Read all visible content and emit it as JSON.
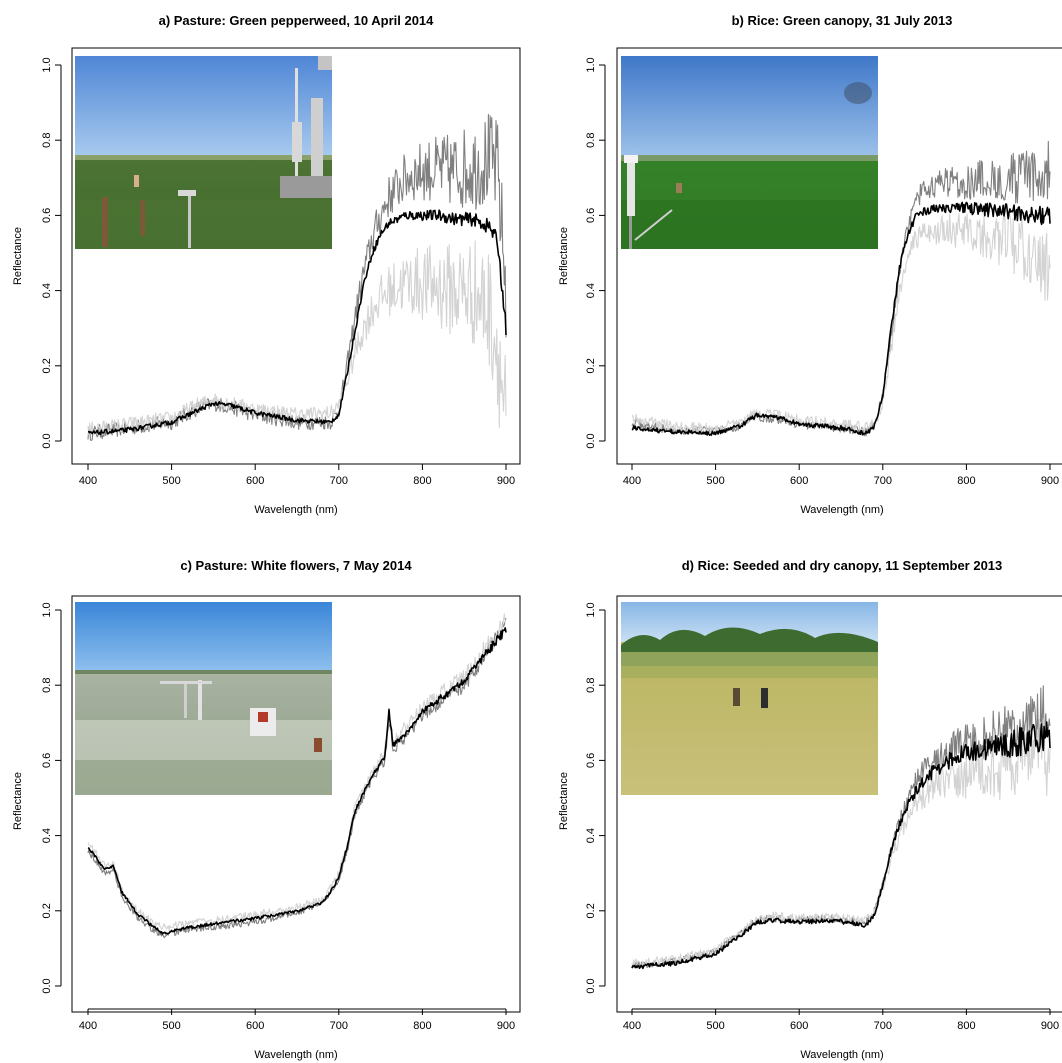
{
  "chart_data": [
    {
      "type": "line",
      "title": "a) Pasture: Green pepperweed, 10 April 2014",
      "xlabel": "Wavelength (nm)",
      "ylabel": "Reflectance",
      "xlim": [
        400,
        900
      ],
      "ylim": [
        0.0,
        1.0
      ],
      "xticks": [
        "400",
        "500",
        "600",
        "700",
        "800",
        "900"
      ],
      "yticks": [
        "0.0",
        "0.2",
        "0.4",
        "0.6",
        "0.8",
        "1.0"
      ],
      "grid": false,
      "inset_photo": "pasture-pepperweed-photo",
      "series": [
        {
          "color": "#808080",
          "noise": 0.02,
          "noise_ramp": 0.12,
          "x": [
            400,
            450,
            500,
            530,
            550,
            570,
            600,
            650,
            690,
            700,
            710,
            720,
            730,
            740,
            750,
            760,
            780,
            800,
            820,
            840,
            860,
            880,
            890,
            900
          ],
          "y": [
            0.02,
            0.035,
            0.05,
            0.085,
            0.1,
            0.09,
            0.07,
            0.05,
            0.05,
            0.08,
            0.2,
            0.34,
            0.45,
            0.54,
            0.6,
            0.65,
            0.7,
            0.72,
            0.72,
            0.72,
            0.73,
            0.75,
            0.72,
            0.4
          ]
        },
        {
          "color": "#d3d3d3",
          "noise": 0.02,
          "noise_ramp": 0.16,
          "x": [
            400,
            450,
            500,
            530,
            550,
            570,
            600,
            650,
            690,
            700,
            710,
            720,
            730,
            740,
            750,
            760,
            780,
            800,
            820,
            840,
            860,
            880,
            890,
            900
          ],
          "y": [
            0.03,
            0.045,
            0.06,
            0.095,
            0.11,
            0.1,
            0.085,
            0.07,
            0.075,
            0.095,
            0.16,
            0.24,
            0.3,
            0.35,
            0.38,
            0.4,
            0.42,
            0.42,
            0.41,
            0.4,
            0.4,
            0.35,
            0.25,
            0.05
          ]
        },
        {
          "color": "#000000",
          "noise": 0.006,
          "noise_ramp": 0.015,
          "x": [
            400,
            450,
            500,
            530,
            550,
            570,
            600,
            650,
            690,
            700,
            710,
            720,
            730,
            740,
            750,
            760,
            780,
            800,
            820,
            840,
            860,
            880,
            890,
            900
          ],
          "y": [
            0.02,
            0.03,
            0.05,
            0.08,
            0.1,
            0.095,
            0.075,
            0.055,
            0.05,
            0.07,
            0.18,
            0.3,
            0.42,
            0.5,
            0.55,
            0.58,
            0.6,
            0.6,
            0.6,
            0.59,
            0.59,
            0.57,
            0.53,
            0.3
          ]
        }
      ]
    },
    {
      "type": "line",
      "title": "b) Rice: Green canopy, 31 July 2013",
      "xlabel": "Wavelength (nm)",
      "ylabel": "Reflectance",
      "xlim": [
        400,
        900
      ],
      "ylim": [
        0.0,
        1.0
      ],
      "xticks": [
        "400",
        "500",
        "600",
        "700",
        "800",
        "900"
      ],
      "yticks": [
        "0.0",
        "0.2",
        "0.4",
        "0.6",
        "0.8",
        "1.0"
      ],
      "grid": false,
      "inset_photo": "rice-green-canopy-photo",
      "series": [
        {
          "color": "#808080",
          "noise": 0.012,
          "noise_ramp": 0.07,
          "x": [
            400,
            420,
            450,
            500,
            530,
            550,
            570,
            600,
            650,
            680,
            690,
            700,
            710,
            720,
            730,
            740,
            750,
            760,
            780,
            800,
            850,
            880,
            900
          ],
          "y": [
            0.05,
            0.04,
            0.03,
            0.025,
            0.04,
            0.065,
            0.06,
            0.045,
            0.035,
            0.025,
            0.05,
            0.12,
            0.28,
            0.45,
            0.57,
            0.64,
            0.67,
            0.68,
            0.69,
            0.69,
            0.7,
            0.7,
            0.72
          ]
        },
        {
          "color": "#d3d3d3",
          "noise": 0.015,
          "noise_ramp": 0.08,
          "x": [
            400,
            420,
            450,
            500,
            530,
            550,
            570,
            600,
            650,
            680,
            690,
            700,
            710,
            720,
            730,
            740,
            750,
            760,
            780,
            800,
            850,
            880,
            900
          ],
          "y": [
            0.06,
            0.05,
            0.04,
            0.03,
            0.05,
            0.075,
            0.07,
            0.055,
            0.045,
            0.035,
            0.045,
            0.1,
            0.24,
            0.4,
            0.5,
            0.54,
            0.55,
            0.56,
            0.56,
            0.55,
            0.53,
            0.5,
            0.45
          ]
        },
        {
          "color": "#000000",
          "noise": 0.006,
          "noise_ramp": 0.02,
          "x": [
            400,
            420,
            450,
            500,
            530,
            550,
            570,
            600,
            650,
            680,
            690,
            700,
            710,
            720,
            730,
            740,
            750,
            760,
            780,
            800,
            850,
            880,
            900
          ],
          "y": [
            0.035,
            0.03,
            0.025,
            0.02,
            0.04,
            0.07,
            0.065,
            0.045,
            0.035,
            0.02,
            0.04,
            0.12,
            0.3,
            0.46,
            0.55,
            0.6,
            0.61,
            0.62,
            0.62,
            0.62,
            0.61,
            0.6,
            0.6
          ]
        }
      ]
    },
    {
      "type": "line",
      "title": "c) Pasture: White flowers, 7 May 2014",
      "xlabel": "Wavelength (nm)",
      "ylabel": "Reflectance",
      "xlim": [
        400,
        900
      ],
      "ylim": [
        0.0,
        1.0
      ],
      "xticks": [
        "400",
        "500",
        "600",
        "700",
        "800",
        "900"
      ],
      "yticks": [
        "0.0",
        "0.2",
        "0.4",
        "0.6",
        "0.8",
        "1.0"
      ],
      "grid": false,
      "inset_photo": "pasture-white-flowers-photo",
      "series": [
        {
          "color": "#808080",
          "noise": 0.008,
          "noise_ramp": 0.015,
          "x": [
            400,
            410,
            420,
            430,
            440,
            460,
            480,
            490,
            500,
            520,
            550,
            600,
            650,
            680,
            690,
            700,
            710,
            720,
            740,
            755,
            760,
            765,
            780,
            800,
            850,
            900
          ],
          "y": [
            0.36,
            0.33,
            0.3,
            0.31,
            0.24,
            0.18,
            0.145,
            0.135,
            0.14,
            0.15,
            0.155,
            0.17,
            0.195,
            0.22,
            0.25,
            0.28,
            0.36,
            0.46,
            0.55,
            0.6,
            0.7,
            0.63,
            0.66,
            0.72,
            0.8,
            0.96
          ]
        },
        {
          "color": "#d3d3d3",
          "noise": 0.01,
          "noise_ramp": 0.02,
          "x": [
            400,
            410,
            420,
            430,
            440,
            460,
            480,
            490,
            500,
            520,
            550,
            600,
            650,
            680,
            690,
            700,
            710,
            720,
            740,
            755,
            760,
            765,
            780,
            800,
            850,
            900
          ],
          "y": [
            0.38,
            0.35,
            0.32,
            0.33,
            0.26,
            0.2,
            0.165,
            0.155,
            0.16,
            0.17,
            0.175,
            0.19,
            0.21,
            0.23,
            0.26,
            0.3,
            0.38,
            0.48,
            0.57,
            0.62,
            0.72,
            0.65,
            0.69,
            0.74,
            0.82,
            0.97
          ]
        },
        {
          "color": "#000000",
          "noise": 0.004,
          "noise_ramp": 0.008,
          "x": [
            400,
            410,
            420,
            430,
            440,
            460,
            480,
            490,
            500,
            520,
            550,
            600,
            650,
            680,
            690,
            700,
            710,
            720,
            740,
            755,
            760,
            765,
            780,
            800,
            850,
            900
          ],
          "y": [
            0.37,
            0.34,
            0.31,
            0.32,
            0.25,
            0.19,
            0.155,
            0.14,
            0.145,
            0.155,
            0.165,
            0.18,
            0.2,
            0.22,
            0.25,
            0.29,
            0.37,
            0.47,
            0.56,
            0.61,
            0.73,
            0.64,
            0.67,
            0.73,
            0.81,
            0.95
          ]
        }
      ]
    },
    {
      "type": "line",
      "title": "d) Rice: Seeded and dry canopy, 11 September 2013",
      "xlabel": "Wavelength (nm)",
      "ylabel": "Reflectance",
      "xlim": [
        400,
        900
      ],
      "ylim": [
        0.0,
        1.0
      ],
      "xticks": [
        "400",
        "500",
        "600",
        "700",
        "800",
        "900"
      ],
      "yticks": [
        "0.0",
        "0.2",
        "0.4",
        "0.6",
        "0.8",
        "1.0"
      ],
      "grid": false,
      "inset_photo": "rice-seeded-dry-photo",
      "series": [
        {
          "color": "#808080",
          "noise": 0.01,
          "noise_ramp": 0.08,
          "x": [
            400,
            450,
            500,
            530,
            550,
            570,
            600,
            640,
            670,
            680,
            690,
            700,
            710,
            720,
            730,
            740,
            750,
            760,
            780,
            800,
            850,
            880,
            900
          ],
          "y": [
            0.055,
            0.065,
            0.09,
            0.14,
            0.175,
            0.18,
            0.175,
            0.18,
            0.17,
            0.17,
            0.2,
            0.27,
            0.36,
            0.44,
            0.5,
            0.55,
            0.58,
            0.6,
            0.63,
            0.65,
            0.68,
            0.7,
            0.72
          ]
        },
        {
          "color": "#d3d3d3",
          "noise": 0.012,
          "noise_ramp": 0.1,
          "x": [
            400,
            450,
            500,
            530,
            550,
            570,
            600,
            640,
            670,
            680,
            690,
            700,
            710,
            720,
            730,
            740,
            750,
            760,
            780,
            800,
            850,
            880,
            900
          ],
          "y": [
            0.06,
            0.07,
            0.095,
            0.145,
            0.18,
            0.185,
            0.18,
            0.185,
            0.175,
            0.175,
            0.2,
            0.26,
            0.33,
            0.4,
            0.45,
            0.49,
            0.51,
            0.53,
            0.55,
            0.56,
            0.58,
            0.6,
            0.62
          ]
        },
        {
          "color": "#000000",
          "noise": 0.006,
          "noise_ramp": 0.04,
          "x": [
            400,
            450,
            500,
            530,
            550,
            570,
            600,
            640,
            670,
            680,
            690,
            700,
            710,
            720,
            730,
            740,
            750,
            760,
            780,
            800,
            850,
            880,
            900
          ],
          "y": [
            0.05,
            0.06,
            0.085,
            0.135,
            0.17,
            0.175,
            0.17,
            0.175,
            0.165,
            0.16,
            0.19,
            0.27,
            0.36,
            0.43,
            0.48,
            0.52,
            0.55,
            0.57,
            0.6,
            0.62,
            0.64,
            0.66,
            0.67
          ]
        }
      ]
    }
  ]
}
